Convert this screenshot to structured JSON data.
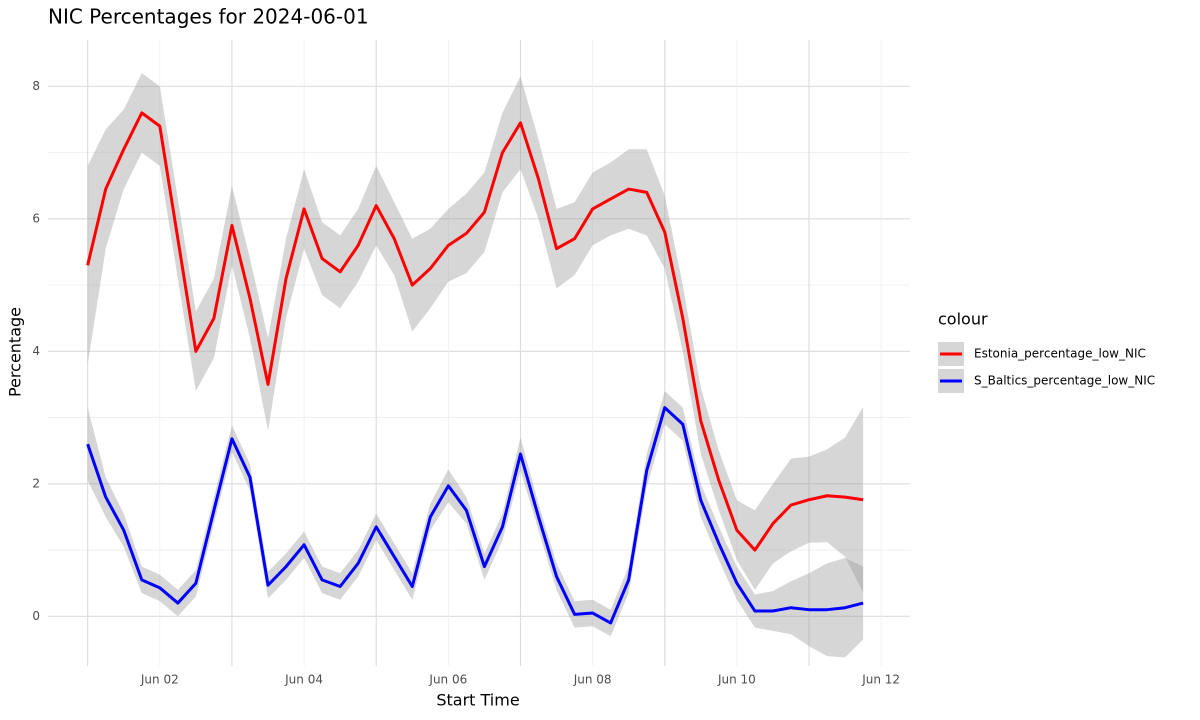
{
  "chart_data": {
    "type": "line",
    "title": "NIC Percentages for 2024-06-01",
    "x_label": "Start Time",
    "y_label": "Percentage",
    "legend_title": "colour",
    "legend": "right",
    "grid": true,
    "band_color": "#999999",
    "x": [
      1,
      1.25,
      1.5,
      1.75,
      2,
      2.25,
      2.5,
      2.75,
      3,
      3.25,
      3.5,
      3.75,
      4,
      4.25,
      4.5,
      4.75,
      5,
      5.25,
      5.5,
      5.75,
      6,
      6.25,
      6.5,
      6.75,
      7,
      7.25,
      7.5,
      7.75,
      8,
      8.25,
      8.5,
      8.75,
      9,
      9.25,
      9.5,
      9.75,
      10,
      10.25,
      10.5,
      10.75,
      11,
      11.25,
      11.5,
      11.75
    ],
    "xlim": [
      0.45,
      12.4
    ],
    "xticks": [
      {
        "value": 2,
        "label": "Jun 02"
      },
      {
        "value": 4,
        "label": "Jun 04"
      },
      {
        "value": 6,
        "label": "Jun 06"
      },
      {
        "value": 8,
        "label": "Jun 08"
      },
      {
        "value": 10,
        "label": "Jun 10"
      },
      {
        "value": 12,
        "label": "Jun 12"
      }
    ],
    "xminorticks": [
      1,
      3,
      5,
      7,
      9,
      11
    ],
    "ylim": [
      -0.75,
      8.7
    ],
    "yticks": [
      0,
      2,
      4,
      6,
      8
    ],
    "yminorticks": [
      1,
      3,
      5,
      7
    ],
    "series": [
      {
        "name": "Estonia_percentage_low_NIC",
        "color": "#ff0000",
        "values": [
          5.3,
          6.45,
          7.05,
          7.6,
          7.4,
          5.7,
          4.0,
          4.5,
          5.9,
          4.8,
          3.5,
          5.1,
          6.15,
          5.4,
          5.2,
          5.6,
          6.2,
          5.7,
          5.0,
          5.25,
          5.6,
          5.78,
          6.1,
          7.0,
          7.45,
          6.6,
          5.55,
          5.7,
          6.15,
          6.3,
          6.45,
          6.4,
          5.8,
          4.5,
          2.95,
          2.05,
          1.3,
          1.0,
          1.4,
          1.68,
          1.76,
          1.82,
          1.8,
          1.76
        ],
        "lower": [
          3.8,
          5.55,
          6.45,
          7.0,
          6.8,
          5.1,
          3.4,
          3.9,
          5.3,
          4.2,
          2.8,
          4.5,
          5.55,
          4.85,
          4.65,
          5.05,
          5.6,
          5.15,
          4.3,
          4.65,
          5.05,
          5.18,
          5.5,
          6.4,
          6.75,
          6.0,
          4.95,
          5.15,
          5.6,
          5.75,
          5.85,
          5.75,
          5.25,
          4.0,
          2.45,
          1.6,
          0.85,
          0.4,
          0.8,
          0.98,
          1.11,
          1.12,
          0.9,
          0.36
        ],
        "upper": [
          6.8,
          7.35,
          7.65,
          8.2,
          8.0,
          6.3,
          4.6,
          5.1,
          6.5,
          5.4,
          4.2,
          5.7,
          6.75,
          5.95,
          5.75,
          6.15,
          6.8,
          6.25,
          5.7,
          5.85,
          6.15,
          6.38,
          6.7,
          7.6,
          8.15,
          7.2,
          6.15,
          6.25,
          6.7,
          6.85,
          7.05,
          7.05,
          6.35,
          5.0,
          3.45,
          2.5,
          1.75,
          1.6,
          2.0,
          2.38,
          2.41,
          2.52,
          2.7,
          3.16
        ]
      },
      {
        "name": "S_Baltics_percentage_low_NIC",
        "color": "#0000ff",
        "values": [
          2.6,
          1.8,
          1.3,
          0.55,
          0.43,
          0.2,
          0.5,
          1.6,
          2.68,
          2.1,
          0.47,
          0.75,
          1.08,
          0.55,
          0.45,
          0.8,
          1.35,
          0.9,
          0.45,
          1.5,
          1.97,
          1.6,
          0.75,
          1.35,
          2.45,
          1.5,
          0.6,
          0.03,
          0.05,
          -0.1,
          0.55,
          2.2,
          3.15,
          2.9,
          1.75,
          1.1,
          0.5,
          0.08,
          0.08,
          0.13,
          0.1,
          0.1,
          0.13,
          0.2
        ],
        "lower": [
          2.05,
          1.5,
          1.05,
          0.35,
          0.23,
          0.0,
          0.3,
          1.4,
          2.48,
          1.9,
          0.27,
          0.55,
          0.88,
          0.35,
          0.25,
          0.6,
          1.15,
          0.7,
          0.25,
          1.3,
          1.72,
          1.4,
          0.55,
          1.15,
          2.2,
          1.3,
          0.4,
          -0.17,
          -0.15,
          -0.3,
          0.35,
          1.95,
          2.9,
          2.65,
          1.5,
          0.85,
          0.25,
          -0.17,
          -0.22,
          -0.27,
          -0.45,
          -0.6,
          -0.62,
          -0.35
        ],
        "upper": [
          3.15,
          2.1,
          1.55,
          0.75,
          0.63,
          0.4,
          0.7,
          1.8,
          2.88,
          2.3,
          0.67,
          0.95,
          1.28,
          0.75,
          0.65,
          1.0,
          1.55,
          1.1,
          0.65,
          1.7,
          2.22,
          1.8,
          0.95,
          1.55,
          2.7,
          1.7,
          0.8,
          0.23,
          0.25,
          0.1,
          0.75,
          2.45,
          3.4,
          3.15,
          2.0,
          1.35,
          0.75,
          0.33,
          0.38,
          0.53,
          0.65,
          0.8,
          0.88,
          0.75
        ]
      }
    ]
  }
}
